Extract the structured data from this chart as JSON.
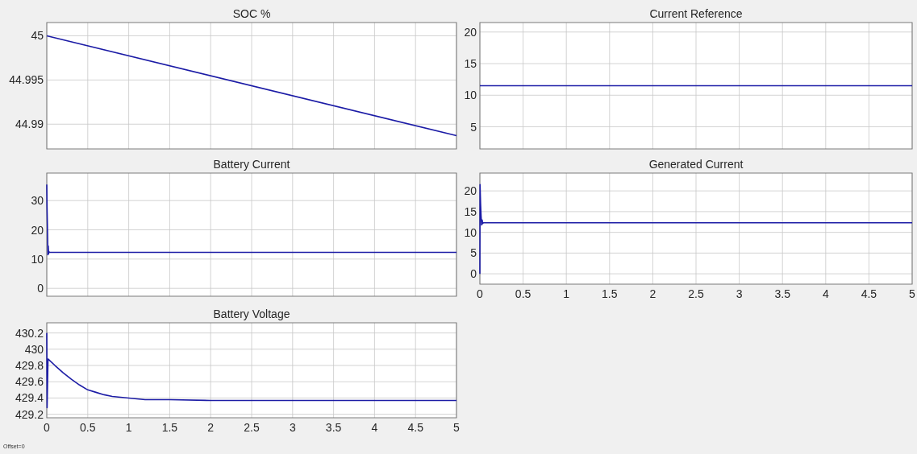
{
  "chart_data": [
    {
      "type": "line",
      "title": "SOC %",
      "xlim": [
        0,
        5
      ],
      "xticks": [
        0,
        0.5,
        1,
        1.5,
        2,
        2.5,
        3,
        3.5,
        4,
        4.5,
        5
      ],
      "ylim": [
        44.9872,
        45.0015
      ],
      "yticks": [
        44.99,
        44.995,
        45
      ],
      "tick_labels": "y",
      "grid": true,
      "series": [
        {
          "color": "#1c1ca6",
          "x": [
            0,
            5
          ],
          "values": [
            45,
            44.9887
          ]
        }
      ]
    },
    {
      "type": "line",
      "title": "Current Reference",
      "xlim": [
        0,
        5
      ],
      "xticks": [
        0,
        0.5,
        1,
        1.5,
        2,
        2.5,
        3,
        3.5,
        4,
        4.5,
        5
      ],
      "ylim": [
        1.5,
        21.5
      ],
      "yticks": [
        5,
        10,
        15,
        20
      ],
      "tick_labels": "y",
      "grid": true,
      "series": [
        {
          "color": "#1c1ca6",
          "x": [
            0,
            5
          ],
          "values": [
            11.5,
            11.5
          ]
        }
      ]
    },
    {
      "type": "line",
      "title": "Battery Current",
      "xlim": [
        0,
        5
      ],
      "xticks": [
        0,
        0.5,
        1,
        1.5,
        2,
        2.5,
        3,
        3.5,
        4,
        4.5,
        5
      ],
      "ylim": [
        -2.7,
        39.4
      ],
      "yticks": [
        0,
        10,
        20,
        30
      ],
      "tick_labels": "y",
      "grid": true,
      "series": [
        {
          "color": "#1c1ca6",
          "x": [
            0,
            0.003,
            0.01,
            0.014,
            0.018,
            0.022,
            0.026,
            0.03,
            5
          ],
          "values": [
            35.5,
            28,
            18,
            11.5,
            14.5,
            11.8,
            12.6,
            12.3,
            12.3
          ]
        }
      ]
    },
    {
      "type": "line",
      "title": "Generated Current",
      "xlim": [
        0,
        5
      ],
      "xticks": [
        0,
        0.5,
        1,
        1.5,
        2,
        2.5,
        3,
        3.5,
        4,
        4.5,
        5
      ],
      "ylim": [
        -2.5,
        24.3
      ],
      "yticks": [
        0,
        5,
        10,
        15,
        20
      ],
      "grid": true,
      "series": [
        {
          "color": "#1c1ca6",
          "x": [
            0,
            0.002,
            0.008,
            0.014,
            0.02,
            0.026,
            0.032,
            0.04,
            5
          ],
          "values": [
            0,
            21.5,
            17,
            14,
            11.8,
            13,
            12.1,
            12.3,
            12.3
          ]
        }
      ]
    },
    {
      "type": "line",
      "title": "Battery Voltage",
      "xlim": [
        0,
        5
      ],
      "xticks": [
        0,
        0.5,
        1,
        1.5,
        2,
        2.5,
        3,
        3.5,
        4,
        4.5,
        5
      ],
      "ylim": [
        429.157,
        430.325
      ],
      "yticks": [
        429.2,
        429.4,
        429.6,
        429.8,
        430,
        430.2
      ],
      "grid": true,
      "annotations": [
        "Offset=0"
      ],
      "series": [
        {
          "color": "#1c1ca6",
          "x": [
            0,
            0.004,
            0.015,
            0.1,
            0.2,
            0.3,
            0.4,
            0.5,
            0.6,
            0.7,
            0.8,
            1,
            1.2,
            1.5,
            2,
            3,
            5
          ],
          "values": [
            430.2,
            429.28,
            429.88,
            429.8,
            429.71,
            429.63,
            429.56,
            429.5,
            429.47,
            429.44,
            429.42,
            429.4,
            429.38,
            429.38,
            429.37,
            429.37,
            429.37
          ]
        }
      ]
    }
  ]
}
